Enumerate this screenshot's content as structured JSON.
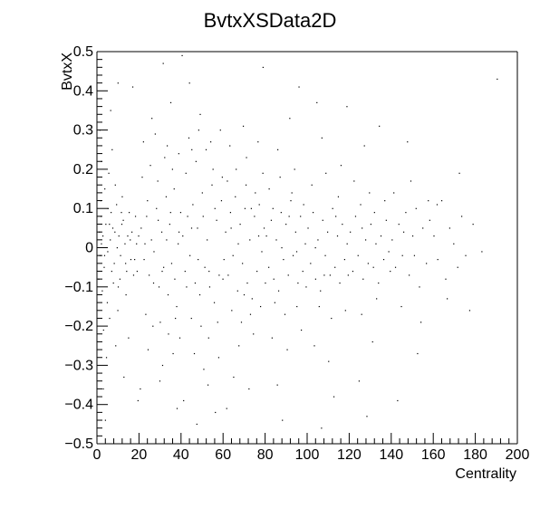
{
  "chart_data": {
    "type": "scatter",
    "title": "BvtxXSData2D",
    "xlabel": "Centrality",
    "ylabel": "BvtxX",
    "xlim": [
      0,
      200
    ],
    "ylim": [
      -0.5,
      0.5
    ],
    "x_ticks": [
      0,
      20,
      40,
      60,
      80,
      100,
      120,
      140,
      160,
      180,
      200
    ],
    "y_ticks": [
      -0.5,
      -0.4,
      -0.3,
      -0.2,
      -0.1,
      0,
      0.1,
      0.2,
      0.3,
      0.4,
      0.5
    ],
    "x_tick_labels": [
      "0",
      "20",
      "40",
      "60",
      "80",
      "100",
      "120",
      "140",
      "160",
      "180",
      "200"
    ],
    "y_tick_labels": [
      "−0.5",
      "−0.4",
      "−0.3",
      "−0.2",
      "−0.1",
      "0",
      "0.1",
      "0.2",
      "0.3",
      "0.4",
      "0.5"
    ],
    "grid": false,
    "legend": "none",
    "point_color": "#000000",
    "points": [
      [
        1.2,
        0.04
      ],
      [
        1.5,
        -0.02
      ],
      [
        2.1,
        0.01
      ],
      [
        2.8,
        0.03
      ],
      [
        3.4,
        -0.05
      ],
      [
        4.2,
        0.06
      ],
      [
        5.1,
        -0.01
      ],
      [
        6.3,
        0.02
      ],
      [
        7.5,
        0.05
      ],
      [
        8.2,
        -0.04
      ],
      [
        9.6,
        0.0
      ],
      [
        10.4,
        0.03
      ],
      [
        11.2,
        -0.02
      ],
      [
        12.5,
        0.07
      ],
      [
        13.3,
        0.01
      ],
      [
        14.1,
        -0.06
      ],
      [
        15.8,
        0.02
      ],
      [
        16.6,
        0.04
      ],
      [
        17.9,
        -0.03
      ],
      [
        18.8,
        0.01
      ],
      [
        1.8,
        0.12
      ],
      [
        2.5,
        -0.11
      ],
      [
        3.7,
        0.15
      ],
      [
        4.9,
        -0.14
      ],
      [
        6.7,
        0.09
      ],
      [
        7.8,
        -0.09
      ],
      [
        9.3,
        0.11
      ],
      [
        10.9,
        -0.08
      ],
      [
        12.0,
        0.13
      ],
      [
        13.8,
        -0.12
      ],
      [
        2.2,
        0.22
      ],
      [
        3.1,
        -0.21
      ],
      [
        5.6,
        0.19
      ],
      [
        6.0,
        -0.18
      ],
      [
        8.7,
        0.16
      ],
      [
        9.9,
        -0.16
      ],
      [
        1.4,
        0.3
      ],
      [
        4.5,
        -0.28
      ],
      [
        7.2,
        0.25
      ],
      [
        8.9,
        -0.25
      ],
      [
        3.0,
        -0.36
      ],
      [
        6.5,
        0.35
      ],
      [
        12.8,
        -0.33
      ],
      [
        4.0,
        -0.44
      ],
      [
        10.0,
        0.42
      ],
      [
        17.0,
        0.41
      ],
      [
        19.5,
        -0.39
      ],
      [
        15.0,
        -0.23
      ],
      [
        21.0,
        0.05
      ],
      [
        22.4,
        -0.03
      ],
      [
        23.6,
        0.08
      ],
      [
        24.8,
        -0.07
      ],
      [
        25.9,
        0.02
      ],
      [
        27.1,
        -0.01
      ],
      [
        28.3,
        0.1
      ],
      [
        29.5,
        -0.1
      ],
      [
        30.8,
        0.04
      ],
      [
        31.7,
        -0.05
      ],
      [
        32.9,
        0.13
      ],
      [
        33.8,
        -0.12
      ],
      [
        34.6,
        0.06
      ],
      [
        35.5,
        -0.04
      ],
      [
        36.7,
        0.15
      ],
      [
        37.9,
        -0.15
      ],
      [
        38.6,
        0.01
      ],
      [
        39.8,
        0.09
      ],
      [
        21.5,
        0.18
      ],
      [
        23.2,
        -0.17
      ],
      [
        25.4,
        0.21
      ],
      [
        26.6,
        -0.2
      ],
      [
        28.9,
        0.17
      ],
      [
        30.1,
        -0.19
      ],
      [
        32.2,
        0.23
      ],
      [
        34.0,
        -0.22
      ],
      [
        35.9,
        0.2
      ],
      [
        37.3,
        -0.18
      ],
      [
        22.1,
        0.27
      ],
      [
        24.3,
        -0.26
      ],
      [
        27.7,
        0.29
      ],
      [
        31.2,
        -0.3
      ],
      [
        33.4,
        0.26
      ],
      [
        36.2,
        -0.27
      ],
      [
        38.9,
        0.24
      ],
      [
        39.4,
        -0.23
      ],
      [
        20.6,
        -0.36
      ],
      [
        26.1,
        0.33
      ],
      [
        29.9,
        -0.34
      ],
      [
        35.1,
        0.37
      ],
      [
        38.1,
        -0.41
      ],
      [
        31.5,
        0.47
      ],
      [
        40.8,
        0.03
      ],
      [
        41.9,
        -0.06
      ],
      [
        43.1,
        0.08
      ],
      [
        44.2,
        -0.02
      ],
      [
        45.6,
        0.11
      ],
      [
        46.7,
        -0.09
      ],
      [
        47.8,
        0.05
      ],
      [
        48.9,
        -0.12
      ],
      [
        50.1,
        0.14
      ],
      [
        51.3,
        -0.05
      ],
      [
        52.4,
        0.02
      ],
      [
        53.6,
        -0.1
      ],
      [
        54.7,
        0.16
      ],
      [
        55.8,
        -0.14
      ],
      [
        56.9,
        0.07
      ],
      [
        58.1,
        -0.07
      ],
      [
        59.2,
        0.12
      ],
      [
        60.4,
        -0.03
      ],
      [
        42.3,
        0.19
      ],
      [
        44.9,
        -0.18
      ],
      [
        47.1,
        0.22
      ],
      [
        49.5,
        -0.2
      ],
      [
        51.9,
        0.25
      ],
      [
        53.1,
        -0.23
      ],
      [
        55.2,
        0.2
      ],
      [
        57.4,
        -0.19
      ],
      [
        59.6,
        0.18
      ],
      [
        43.7,
        0.28
      ],
      [
        46.3,
        -0.27
      ],
      [
        48.4,
        0.3
      ],
      [
        50.8,
        -0.31
      ],
      [
        54.1,
        0.27
      ],
      [
        57.9,
        -0.28
      ],
      [
        45.1,
        0.25
      ],
      [
        49.1,
        0.34
      ],
      [
        52.8,
        -0.35
      ],
      [
        41.2,
        -0.39
      ],
      [
        44.0,
        0.42
      ],
      [
        56.3,
        -0.42
      ],
      [
        58.7,
        0.3
      ],
      [
        40.5,
        0.49
      ],
      [
        47.5,
        -0.45
      ],
      [
        61.2,
        0.04
      ],
      [
        62.4,
        -0.07
      ],
      [
        63.5,
        0.09
      ],
      [
        64.7,
        -0.02
      ],
      [
        65.8,
        0.13
      ],
      [
        66.9,
        -0.11
      ],
      [
        68.1,
        0.06
      ],
      [
        69.2,
        -0.04
      ],
      [
        70.4,
        0.1
      ],
      [
        71.5,
        -0.09
      ],
      [
        72.7,
        0.02
      ],
      [
        73.8,
        -0.13
      ],
      [
        74.9,
        0.08
      ],
      [
        76.1,
        -0.06
      ],
      [
        77.2,
        0.11
      ],
      [
        78.4,
        -0.01
      ],
      [
        79.5,
        0.05
      ],
      [
        62.0,
        0.17
      ],
      [
        64.1,
        -0.16
      ],
      [
        66.2,
        0.2
      ],
      [
        68.7,
        -0.19
      ],
      [
        70.9,
        0.16
      ],
      [
        73.0,
        -0.17
      ],
      [
        75.3,
        0.14
      ],
      [
        77.8,
        -0.15
      ],
      [
        63.2,
        0.26
      ],
      [
        67.5,
        -0.25
      ],
      [
        71.1,
        0.23
      ],
      [
        74.4,
        -0.22
      ],
      [
        78.9,
        0.19
      ],
      [
        65.0,
        -0.33
      ],
      [
        69.6,
        0.31
      ],
      [
        72.3,
        -0.36
      ],
      [
        76.6,
        0.27
      ],
      [
        61.7,
        -0.41
      ],
      [
        79.0,
        0.46
      ],
      [
        80.6,
        0.03
      ],
      [
        81.7,
        -0.05
      ],
      [
        82.9,
        0.07
      ],
      [
        84.1,
        -0.08
      ],
      [
        85.3,
        0.02
      ],
      [
        86.4,
        -0.11
      ],
      [
        87.6,
        0.09
      ],
      [
        88.7,
        -0.03
      ],
      [
        89.9,
        0.06
      ],
      [
        91.0,
        -0.07
      ],
      [
        92.2,
        0.12
      ],
      [
        93.3,
        -0.02
      ],
      [
        94.5,
        0.04
      ],
      [
        95.6,
        -0.09
      ],
      [
        96.8,
        0.08
      ],
      [
        97.9,
        -0.06
      ],
      [
        99.1,
        0.01
      ],
      [
        81.9,
        0.15
      ],
      [
        84.6,
        -0.14
      ],
      [
        87.1,
        0.18
      ],
      [
        89.4,
        -0.17
      ],
      [
        92.7,
        0.14
      ],
      [
        95.1,
        -0.15
      ],
      [
        98.3,
        0.11
      ],
      [
        83.3,
        -0.23
      ],
      [
        86.0,
        0.25
      ],
      [
        90.5,
        -0.26
      ],
      [
        94.0,
        0.2
      ],
      [
        97.2,
        -0.21
      ],
      [
        85.8,
        -0.35
      ],
      [
        91.7,
        0.33
      ],
      [
        96.1,
        0.41
      ],
      [
        88.2,
        -0.44
      ],
      [
        100.4,
        0.05
      ],
      [
        101.6,
        -0.04
      ],
      [
        102.8,
        0.09
      ],
      [
        104.0,
        -0.08
      ],
      [
        105.1,
        0.02
      ],
      [
        106.3,
        -0.11
      ],
      [
        107.4,
        0.07
      ],
      [
        108.6,
        -0.02
      ],
      [
        109.7,
        0.04
      ],
      [
        110.9,
        -0.07
      ],
      [
        112.1,
        0.1
      ],
      [
        113.2,
        -0.05
      ],
      [
        114.4,
        0.03
      ],
      [
        115.5,
        -0.09
      ],
      [
        116.7,
        0.06
      ],
      [
        117.8,
        -0.03
      ],
      [
        119.0,
        0.01
      ],
      [
        102.2,
        0.16
      ],
      [
        105.7,
        -0.15
      ],
      [
        108.9,
        0.19
      ],
      [
        111.5,
        -0.18
      ],
      [
        114.8,
        0.13
      ],
      [
        118.2,
        -0.16
      ],
      [
        103.4,
        -0.25
      ],
      [
        107.0,
        0.28
      ],
      [
        110.2,
        -0.29
      ],
      [
        116.1,
        0.21
      ],
      [
        104.6,
        0.37
      ],
      [
        112.7,
        -0.38
      ],
      [
        118.9,
        0.36
      ],
      [
        106.8,
        -0.46
      ],
      [
        120.5,
        0.04
      ],
      [
        121.7,
        -0.06
      ],
      [
        123.0,
        0.08
      ],
      [
        124.2,
        -0.02
      ],
      [
        125.4,
        0.11
      ],
      [
        126.6,
        -0.08
      ],
      [
        127.8,
        0.02
      ],
      [
        129.0,
        -0.04
      ],
      [
        130.3,
        0.06
      ],
      [
        131.5,
        -0.05
      ],
      [
        132.7,
        0.01
      ],
      [
        133.9,
        -0.09
      ],
      [
        135.1,
        0.03
      ],
      [
        136.4,
        -0.03
      ],
      [
        137.6,
        0.07
      ],
      [
        138.8,
        -0.01
      ],
      [
        122.3,
        0.17
      ],
      [
        125.9,
        -0.17
      ],
      [
        129.6,
        0.14
      ],
      [
        133.0,
        -0.13
      ],
      [
        136.9,
        0.12
      ],
      [
        127.2,
        0.26
      ],
      [
        131.1,
        -0.24
      ],
      [
        124.7,
        -0.34
      ],
      [
        134.3,
        0.31
      ],
      [
        128.4,
        -0.43
      ],
      [
        140.4,
        0.02
      ],
      [
        142.0,
        -0.05
      ],
      [
        143.6,
        0.06
      ],
      [
        145.3,
        -0.02
      ],
      [
        146.9,
        0.09
      ],
      [
        148.5,
        -0.07
      ],
      [
        150.2,
        0.03
      ],
      [
        151.8,
        0.1
      ],
      [
        153.4,
        -0.1
      ],
      [
        155.0,
        0.05
      ],
      [
        156.7,
        -0.04
      ],
      [
        158.3,
        0.07
      ],
      [
        141.2,
        0.14
      ],
      [
        144.8,
        -0.15
      ],
      [
        149.3,
        0.17
      ],
      [
        154.1,
        -0.19
      ],
      [
        157.6,
        0.12
      ],
      [
        143.0,
        -0.39
      ],
      [
        147.7,
        0.27
      ],
      [
        152.5,
        -0.27
      ],
      [
        160.3,
        0.03
      ],
      [
        162.1,
        -0.03
      ],
      [
        164.0,
        0.12
      ],
      [
        165.9,
        -0.08
      ],
      [
        167.8,
        0.05
      ],
      [
        169.7,
        0.01
      ],
      [
        171.6,
        -0.05
      ],
      [
        173.5,
        0.08
      ],
      [
        175.4,
        -0.02
      ],
      [
        177.3,
        -0.16
      ],
      [
        161.8,
        0.11
      ],
      [
        166.6,
        -0.13
      ],
      [
        172.4,
        0.19
      ],
      [
        178.9,
        0.06
      ],
      [
        183.1,
        -0.01
      ],
      [
        190.4,
        0.43
      ],
      [
        5.9,
        0.06
      ],
      [
        11.6,
        0.09
      ],
      [
        14.6,
        0.03
      ],
      [
        16.1,
        -0.03
      ],
      [
        18.3,
        0.08
      ],
      [
        19.1,
        -0.06
      ],
      [
        0.8,
        -0.08
      ],
      [
        1.9,
        0.08
      ],
      [
        3.6,
        -0.02
      ],
      [
        5.3,
        0.1
      ],
      [
        7.0,
        -0.06
      ],
      [
        8.5,
        0.04
      ],
      [
        10.1,
        -0.1
      ],
      [
        11.8,
        0.06
      ],
      [
        13.6,
        -0.04
      ],
      [
        15.3,
        0.09
      ],
      [
        17.4,
        -0.07
      ],
      [
        19.8,
        0.03
      ],
      [
        22.8,
        0.01
      ],
      [
        24.0,
        0.12
      ],
      [
        26.9,
        -0.09
      ],
      [
        29.1,
        0.07
      ],
      [
        31.0,
        -0.06
      ],
      [
        33.1,
        0.02
      ],
      [
        35.0,
        0.09
      ],
      [
        37.0,
        -0.08
      ],
      [
        39.0,
        0.04
      ],
      [
        42.6,
        -0.1
      ],
      [
        45.0,
        0.05
      ],
      [
        48.1,
        -0.03
      ],
      [
        50.5,
        0.08
      ],
      [
        53.3,
        -0.06
      ],
      [
        56.1,
        0.1
      ],
      [
        59.9,
        -0.08
      ],
      [
        63.8,
        0.05
      ],
      [
        67.2,
        0.01
      ],
      [
        70.0,
        -0.12
      ],
      [
        73.4,
        0.1
      ],
      [
        76.9,
        0.03
      ],
      [
        80.1,
        -0.09
      ],
      [
        83.7,
        0.1
      ],
      [
        87.9,
        0.0
      ],
      [
        91.4,
        0.08
      ],
      [
        95.0,
        -0.01
      ],
      [
        99.5,
        -0.1
      ],
      [
        103.9,
        0.0
      ],
      [
        108.1,
        -0.07
      ],
      [
        113.6,
        0.08
      ],
      [
        119.5,
        -0.07
      ],
      [
        126.1,
        0.05
      ],
      [
        132.0,
        0.09
      ],
      [
        139.5,
        -0.06
      ],
      [
        145.9,
        0.04
      ],
      [
        151.0,
        -0.02
      ]
    ]
  }
}
